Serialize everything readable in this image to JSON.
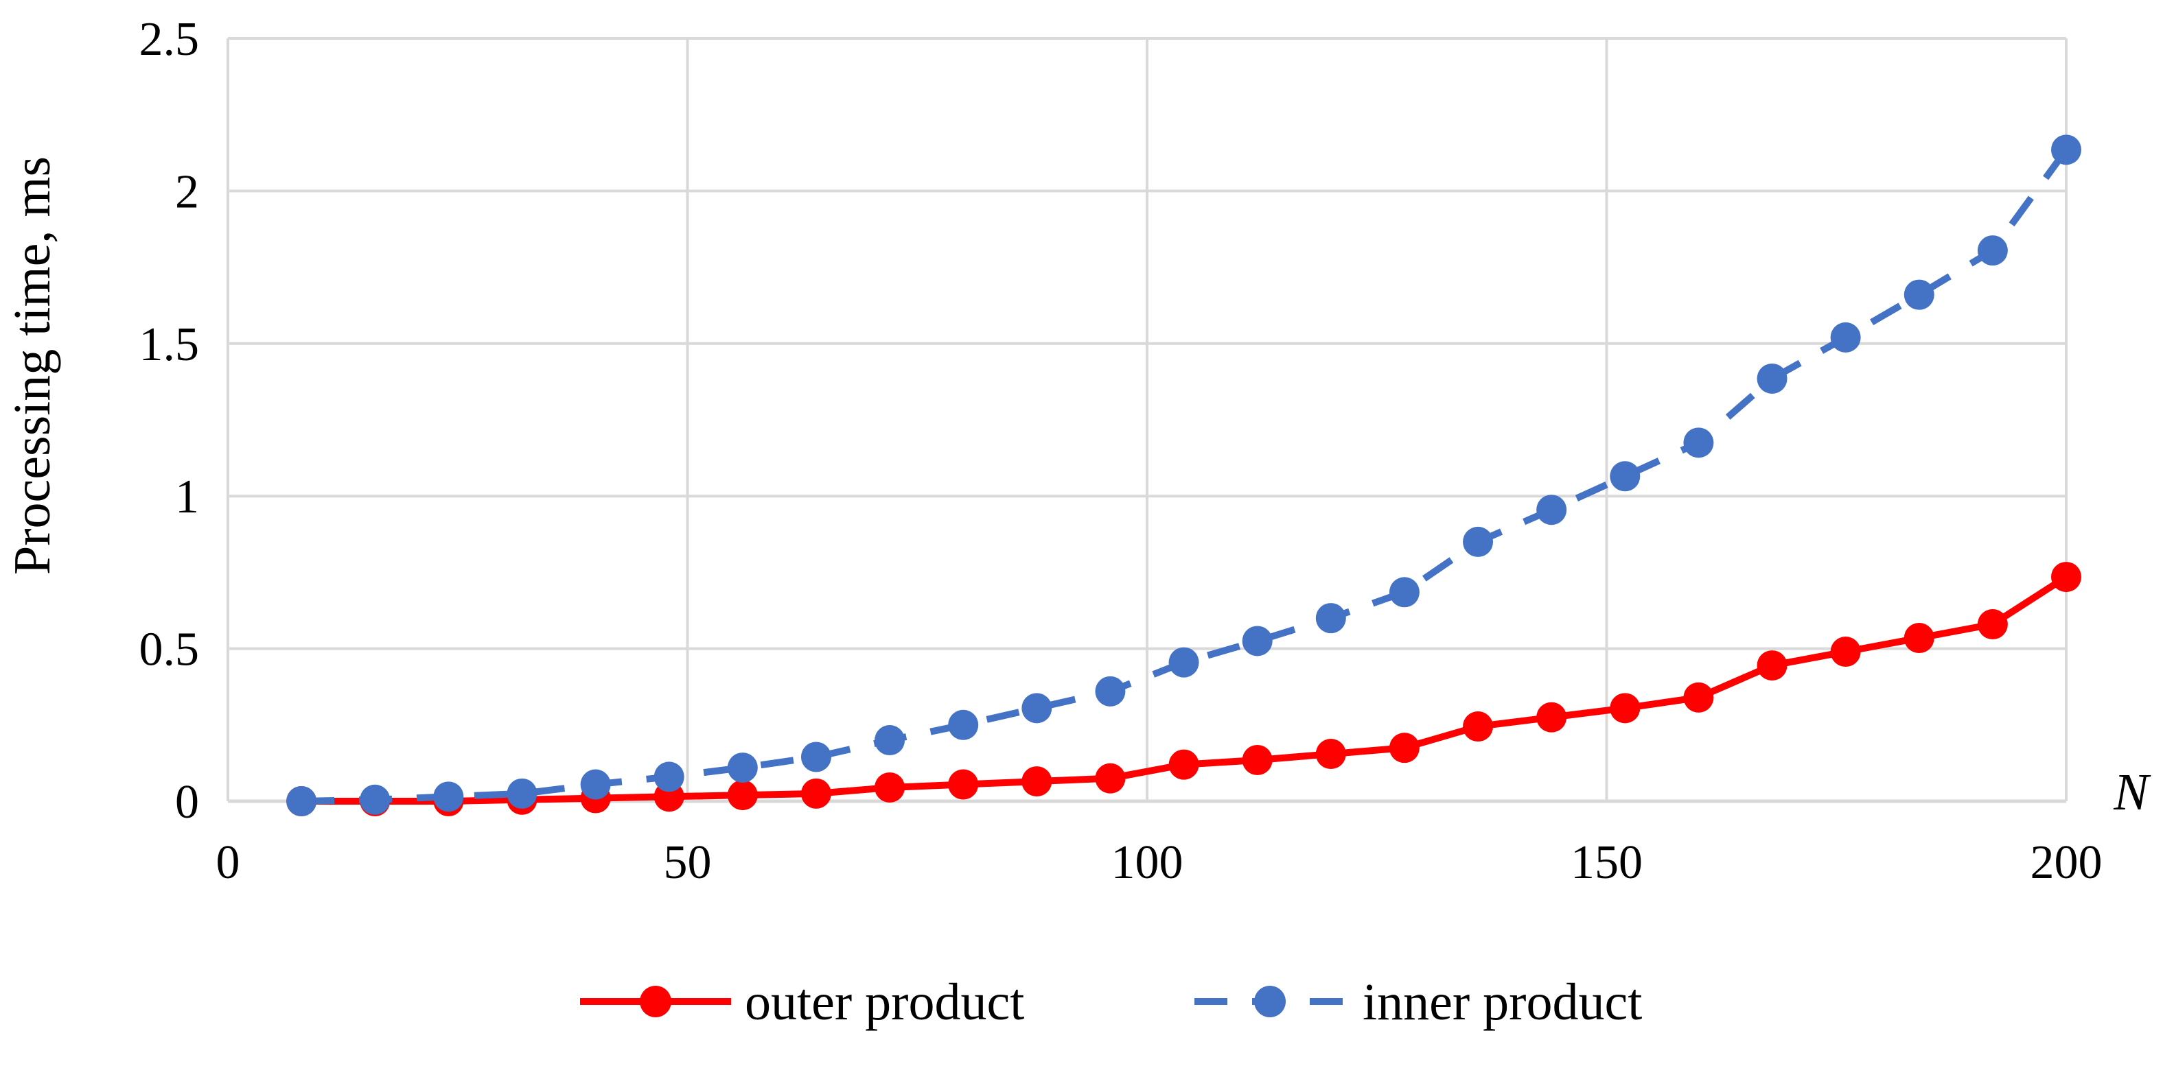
{
  "chart_data": {
    "type": "line",
    "title": "",
    "xlabel": "N",
    "ylabel": "Processing time, ms",
    "xlim": [
      0,
      200
    ],
    "ylim": [
      0,
      2.5
    ],
    "x_ticks": [
      0,
      50,
      100,
      150,
      200
    ],
    "x_tick_labels": [
      "0",
      "50",
      "100",
      "150",
      "200"
    ],
    "y_ticks": [
      0,
      0.5,
      1,
      1.5,
      2,
      2.5
    ],
    "y_tick_labels": [
      "0",
      "0.5",
      "1",
      "1.5",
      "2",
      "2.5"
    ],
    "grid": true,
    "legend_position": "bottom",
    "x": [
      8,
      16,
      24,
      32,
      40,
      48,
      56,
      64,
      72,
      80,
      88,
      96,
      104,
      112,
      120,
      128,
      136,
      144,
      152,
      160,
      168,
      176,
      184,
      192,
      200
    ],
    "series": [
      {
        "name": "outer product",
        "color": "#ff0000",
        "line_style": "solid",
        "marker": "circle",
        "values": [
          0.0,
          0.0,
          0.0,
          0.005,
          0.01,
          0.015,
          0.02,
          0.025,
          0.045,
          0.055,
          0.065,
          0.075,
          0.12,
          0.135,
          0.155,
          0.175,
          0.245,
          0.275,
          0.305,
          0.34,
          0.445,
          0.49,
          0.535,
          0.58,
          0.735
        ]
      },
      {
        "name": "inner product",
        "color": "#4472c4",
        "line_style": "dashed",
        "marker": "circle",
        "values": [
          0.0,
          0.005,
          0.015,
          0.025,
          0.055,
          0.08,
          0.11,
          0.145,
          0.2,
          0.25,
          0.305,
          0.36,
          0.455,
          0.525,
          0.6,
          0.685,
          0.85,
          0.955,
          1.065,
          1.175,
          1.385,
          1.52,
          1.66,
          1.805,
          2.135
        ]
      }
    ]
  }
}
